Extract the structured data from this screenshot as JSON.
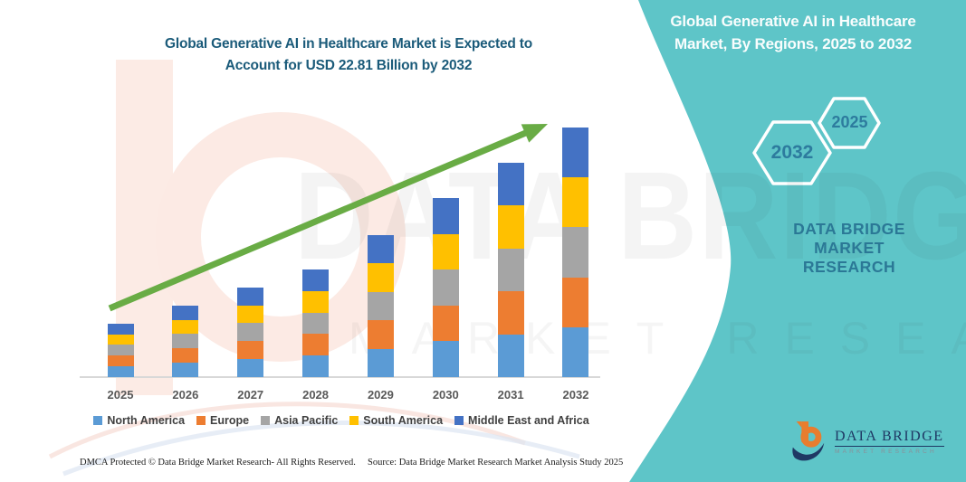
{
  "left_title": {
    "line1": "Global Generative AI in Healthcare Market is Expected to",
    "line2": "Account for USD 22.81 Billion by 2032"
  },
  "right_panel": {
    "title_line1": "Global Generative AI in Healthcare",
    "title_line2": "Market, By Regions, 2025 to 2032",
    "hexagon_large_label": "2032",
    "hexagon_small_label": "2025",
    "brand_line1": "DATA BRIDGE MARKET",
    "brand_line2": "RESEARCH",
    "panel_color": "#5ec5c8"
  },
  "watermark": {
    "big_text": "DATA BRIDGE",
    "sub_text": "MARKET RESEARCH"
  },
  "logo": {
    "name": "DATA BRIDGE",
    "tagline": "MARKET RESEARCH",
    "orange": "#e87d2e",
    "navy": "#1f3864"
  },
  "footer": {
    "left": "DMCA Protected © Data Bridge Market Research-  All Rights Reserved.",
    "right": "Source: Data Bridge Market Research  Market Analysis Study 2025"
  },
  "chart_data": {
    "type": "bar",
    "stacked": true,
    "title": "Global Generative AI in Healthcare Market, By Regions, 2025 to 2032",
    "unit": "USD Billion",
    "headline_value": "USD 22.81 Billion",
    "headline_year": "2032",
    "categories": [
      "2025",
      "2026",
      "2027",
      "2028",
      "2029",
      "2030",
      "2031",
      "2032"
    ],
    "series": [
      {
        "name": "North America",
        "color": "#5B9BD5",
        "values": [
          0.98,
          1.31,
          1.64,
          1.97,
          2.6,
          3.27,
          3.92,
          4.56
        ]
      },
      {
        "name": "Europe",
        "color": "#ED7D31",
        "values": [
          0.98,
          1.31,
          1.64,
          1.97,
          2.6,
          3.27,
          3.92,
          4.56
        ]
      },
      {
        "name": "Asia Pacific",
        "color": "#A5A5A5",
        "values": [
          0.98,
          1.31,
          1.64,
          1.97,
          2.6,
          3.27,
          3.92,
          4.56
        ]
      },
      {
        "name": "South America",
        "color": "#FFC000",
        "values": [
          0.98,
          1.31,
          1.64,
          1.97,
          2.6,
          3.27,
          3.92,
          4.56
        ]
      },
      {
        "name": "Middle East and Africa",
        "color": "#4472C4",
        "values": [
          0.98,
          1.31,
          1.64,
          1.97,
          2.6,
          3.27,
          3.92,
          4.56
        ]
      }
    ],
    "totals": [
      4.88,
      6.53,
      8.18,
      9.83,
      12.98,
      16.36,
      19.59,
      22.81
    ],
    "ylim": [
      0,
      24
    ],
    "grid": false,
    "y_axis_visible": false,
    "legend_position": "bottom",
    "trend_arrow": {
      "present": true,
      "color": "#69ac45"
    }
  }
}
